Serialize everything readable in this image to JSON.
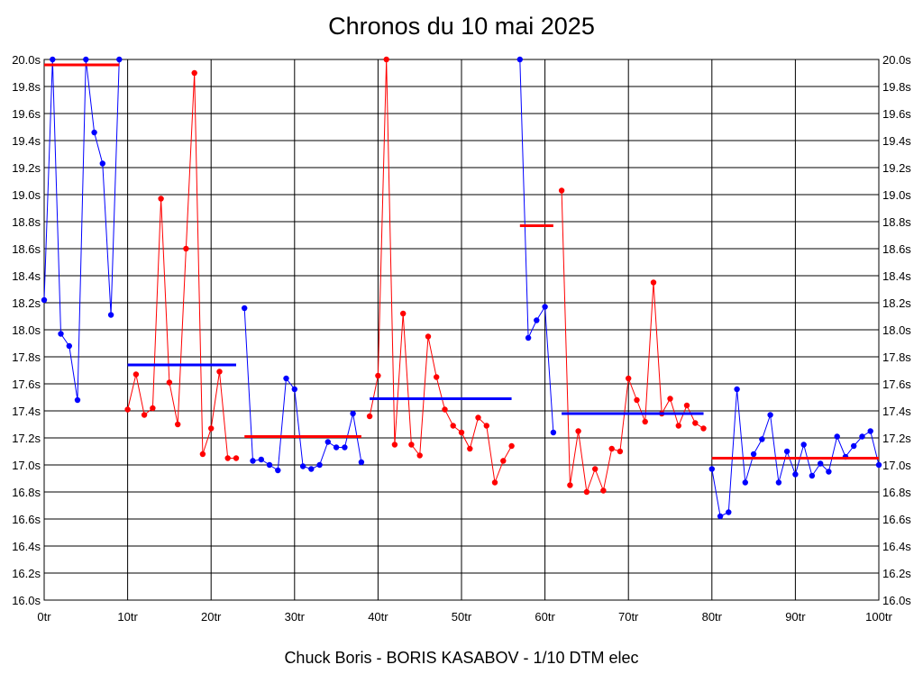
{
  "chart_data": {
    "type": "line",
    "title": "Chronos du 10 mai 2025",
    "footer": "Chuck Boris - BORIS KASABOV - 1/10 DTM elec",
    "xlim": [
      0,
      100
    ],
    "ylim": [
      16.0,
      20.0
    ],
    "x_ticks": [
      {
        "value": 0,
        "label": "0tr"
      },
      {
        "value": 10,
        "label": "10tr"
      },
      {
        "value": 20,
        "label": "20tr"
      },
      {
        "value": 30,
        "label": "30tr"
      },
      {
        "value": 40,
        "label": "40tr"
      },
      {
        "value": 50,
        "label": "50tr"
      },
      {
        "value": 60,
        "label": "60tr"
      },
      {
        "value": 70,
        "label": "70tr"
      },
      {
        "value": 80,
        "label": "80tr"
      },
      {
        "value": 90,
        "label": "90tr"
      },
      {
        "value": 100,
        "label": "100tr"
      }
    ],
    "y_ticks": [
      {
        "value": 16.0,
        "label": "16.0s"
      },
      {
        "value": 16.2,
        "label": "16.2s"
      },
      {
        "value": 16.4,
        "label": "16.4s"
      },
      {
        "value": 16.6,
        "label": "16.6s"
      },
      {
        "value": 16.8,
        "label": "16.8s"
      },
      {
        "value": 17.0,
        "label": "17.0s"
      },
      {
        "value": 17.2,
        "label": "17.2s"
      },
      {
        "value": 17.4,
        "label": "17.4s"
      },
      {
        "value": 17.6,
        "label": "17.6s"
      },
      {
        "value": 17.8,
        "label": "17.8s"
      },
      {
        "value": 18.0,
        "label": "18.0s"
      },
      {
        "value": 18.2,
        "label": "18.2s"
      },
      {
        "value": 18.4,
        "label": "18.4s"
      },
      {
        "value": 18.6,
        "label": "18.6s"
      },
      {
        "value": 18.8,
        "label": "18.8s"
      },
      {
        "value": 19.0,
        "label": "19.0s"
      },
      {
        "value": 19.2,
        "label": "19.2s"
      },
      {
        "value": 19.4,
        "label": "19.4s"
      },
      {
        "value": 19.6,
        "label": "19.6s"
      },
      {
        "value": 19.8,
        "label": "19.8s"
      },
      {
        "value": 20.0,
        "label": "20.0s"
      }
    ],
    "grid": true,
    "series": [
      {
        "color": "#0000ff",
        "x": [
          0,
          1,
          2,
          3,
          4,
          5,
          6,
          7,
          8,
          9
        ],
        "y": [
          18.22,
          20.0,
          17.97,
          17.88,
          17.48,
          20.0,
          19.46,
          19.23,
          18.11,
          20.0
        ],
        "average": {
          "value": 19.96,
          "x_range": [
            0,
            9
          ],
          "color": "#ff0000"
        }
      },
      {
        "color": "#ff0000",
        "x": [
          10,
          11,
          12,
          13,
          14,
          15,
          16,
          17,
          18,
          19,
          20,
          21,
          22,
          23
        ],
        "y": [
          17.41,
          17.67,
          17.37,
          17.42,
          18.97,
          17.61,
          17.3,
          18.6,
          19.9,
          17.08,
          17.27,
          17.69,
          17.05,
          17.05
        ],
        "average": {
          "value": 17.74,
          "x_range": [
            10,
            23
          ],
          "color": "#0000ff"
        }
      },
      {
        "color": "#0000ff",
        "x": [
          24,
          25,
          26,
          27,
          28,
          29,
          30,
          31,
          32,
          33,
          34,
          35,
          36,
          37,
          38
        ],
        "y": [
          18.16,
          17.03,
          17.04,
          17.0,
          16.96,
          17.64,
          17.56,
          16.99,
          16.97,
          17.0,
          17.17,
          17.13,
          17.13,
          17.38,
          17.02
        ],
        "average": {
          "value": 17.21,
          "x_range": [
            24,
            38
          ],
          "color": "#ff0000"
        }
      },
      {
        "color": "#ff0000",
        "x": [
          39,
          40,
          41,
          42,
          43,
          44,
          45,
          46,
          47,
          48,
          49,
          50,
          51,
          52,
          53,
          54,
          55,
          56
        ],
        "y": [
          17.36,
          17.66,
          20.0,
          17.15,
          18.12,
          17.15,
          17.07,
          17.95,
          17.65,
          17.41,
          17.29,
          17.24,
          17.12,
          17.35,
          17.29,
          16.87,
          17.03,
          17.14
        ],
        "average": {
          "value": 17.49,
          "x_range": [
            39,
            56
          ],
          "color": "#0000ff"
        }
      },
      {
        "color": "#0000ff",
        "x": [
          57,
          58,
          59,
          60,
          61
        ],
        "y": [
          20.0,
          17.94,
          18.07,
          18.17,
          17.24
        ],
        "average": {
          "value": 18.77,
          "x_range": [
            57,
            61
          ],
          "color": "#ff0000"
        }
      },
      {
        "color": "#ff0000",
        "x": [
          62,
          63,
          64,
          65,
          66,
          67,
          68,
          69,
          70,
          71,
          72,
          73,
          74,
          75,
          76,
          77,
          78,
          79
        ],
        "y": [
          19.03,
          16.85,
          17.25,
          16.8,
          16.97,
          16.81,
          17.12,
          17.1,
          17.64,
          17.48,
          17.32,
          18.35,
          17.38,
          17.49,
          17.29,
          17.44,
          17.31,
          17.27
        ],
        "average": {
          "value": 17.38,
          "x_range": [
            62,
            79
          ],
          "color": "#0000ff"
        }
      },
      {
        "color": "#0000ff",
        "x": [
          80,
          81,
          82,
          83,
          84,
          85,
          86,
          87,
          88,
          89,
          90,
          91,
          92,
          93,
          94,
          95,
          96,
          97,
          98,
          99,
          100
        ],
        "y": [
          16.97,
          16.62,
          16.65,
          17.56,
          16.87,
          17.08,
          17.19,
          17.37,
          16.87,
          17.1,
          16.93,
          17.15,
          16.92,
          17.01,
          16.95,
          17.21,
          17.06,
          17.14,
          17.21,
          17.25,
          17.0
        ],
        "average": {
          "value": 17.05,
          "x_range": [
            80,
            100
          ],
          "color": "#ff0000"
        }
      }
    ]
  }
}
